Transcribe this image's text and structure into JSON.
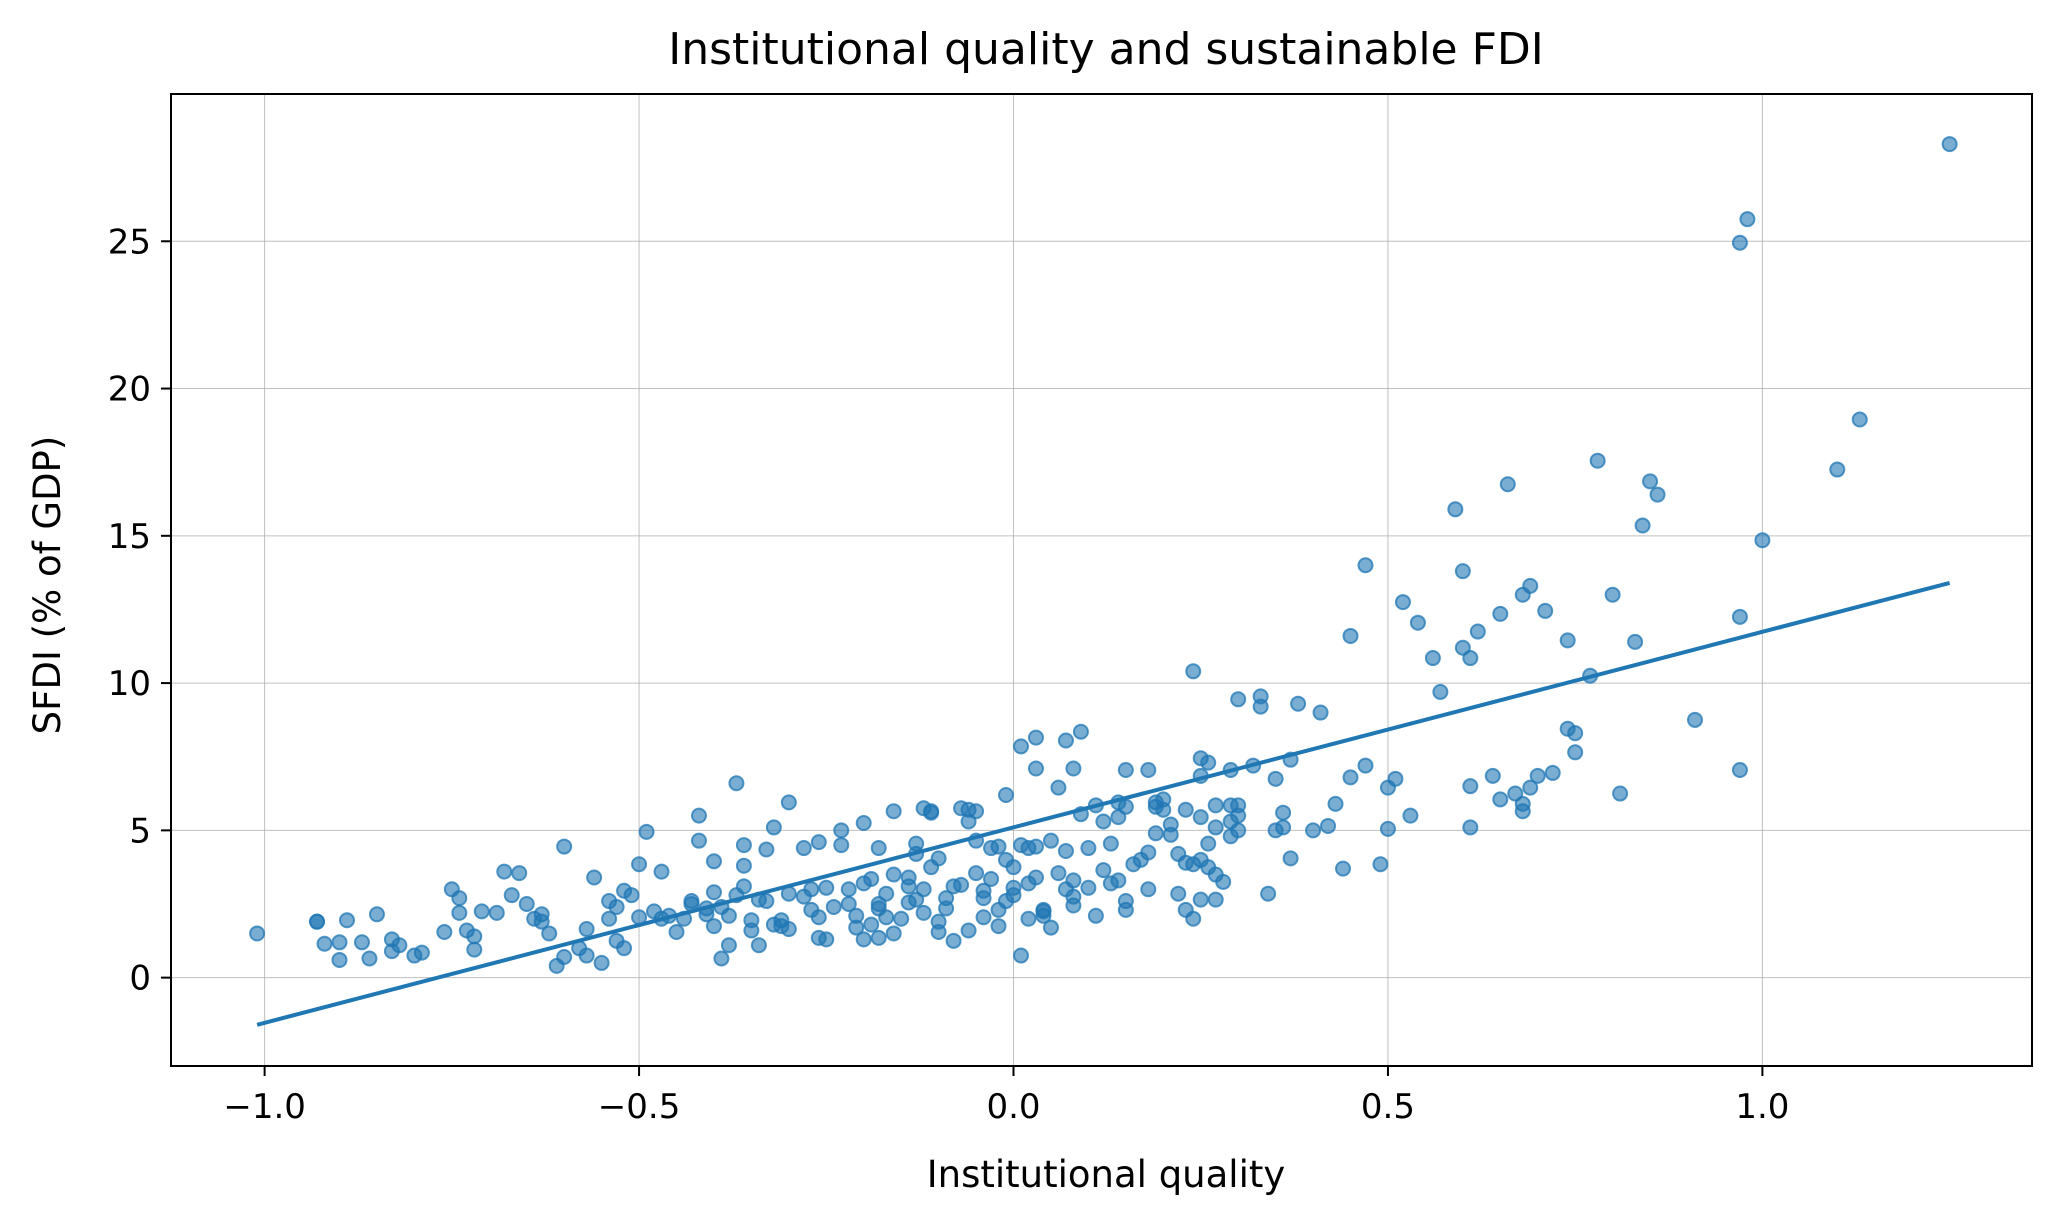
{
  "chart_data": {
    "type": "scatter",
    "title": "Institutional quality and sustainable FDI",
    "xlabel": "Institutional quality",
    "ylabel": "SFDI (% of GDP)",
    "xlim": [
      -1.125,
      1.36
    ],
    "ylim": [
      -3.0,
      30.0
    ],
    "xticks": [
      -1.0,
      -0.5,
      0.0,
      0.5,
      1.0
    ],
    "xtick_labels": [
      "−1.0",
      "−0.5",
      "0.0",
      "0.5",
      "1.0"
    ],
    "yticks": [
      0,
      5,
      10,
      15,
      20,
      25
    ],
    "ytick_labels": [
      "0",
      "5",
      "10",
      "15",
      "20",
      "25"
    ],
    "grid": true,
    "colors": {
      "points": "#1f77b4",
      "fit_line": "#1f77b4"
    },
    "fit_line": {
      "x": [
        -1.01,
        1.25
      ],
      "y": [
        -1.6,
        13.4
      ]
    },
    "points": [
      [
        -1.01,
        1.5
      ],
      [
        -0.93,
        1.9
      ],
      [
        -0.93,
        1.9
      ],
      [
        -0.92,
        1.15
      ],
      [
        -0.9,
        0.6
      ],
      [
        -0.9,
        1.2
      ],
      [
        -0.89,
        1.95
      ],
      [
        -0.87,
        1.2
      ],
      [
        -0.86,
        0.65
      ],
      [
        -0.85,
        2.15
      ],
      [
        -0.83,
        1.3
      ],
      [
        -0.83,
        0.9
      ],
      [
        -0.82,
        1.1
      ],
      [
        -0.8,
        0.75
      ],
      [
        -0.79,
        0.85
      ],
      [
        -0.76,
        1.55
      ],
      [
        -0.75,
        3.0
      ],
      [
        -0.74,
        2.7
      ],
      [
        -0.74,
        2.2
      ],
      [
        -0.73,
        1.6
      ],
      [
        -0.72,
        1.4
      ],
      [
        -0.72,
        0.95
      ],
      [
        -0.71,
        2.25
      ],
      [
        -0.69,
        2.2
      ],
      [
        -0.68,
        3.6
      ],
      [
        -0.67,
        2.8
      ],
      [
        -0.66,
        3.55
      ],
      [
        -0.65,
        2.5
      ],
      [
        -0.64,
        2.0
      ],
      [
        -0.63,
        1.9
      ],
      [
        -0.63,
        2.15
      ],
      [
        -0.62,
        1.5
      ],
      [
        -0.61,
        0.4
      ],
      [
        -0.6,
        0.7
      ],
      [
        -0.6,
        4.45
      ],
      [
        -0.58,
        1.0
      ],
      [
        -0.57,
        0.75
      ],
      [
        -0.57,
        1.65
      ],
      [
        -0.56,
        3.4
      ],
      [
        -0.55,
        0.5
      ],
      [
        -0.54,
        2.6
      ],
      [
        -0.54,
        2.0
      ],
      [
        -0.53,
        1.25
      ],
      [
        -0.53,
        2.4
      ],
      [
        -0.52,
        2.95
      ],
      [
        -0.52,
        1.0
      ],
      [
        -0.51,
        2.8
      ],
      [
        -0.5,
        2.05
      ],
      [
        -0.5,
        3.85
      ],
      [
        -0.49,
        4.95
      ],
      [
        -0.48,
        2.25
      ],
      [
        -0.47,
        2.0
      ],
      [
        -0.47,
        3.6
      ],
      [
        -0.46,
        2.1
      ],
      [
        -0.45,
        1.55
      ],
      [
        -0.44,
        2.0
      ],
      [
        -0.43,
        2.5
      ],
      [
        -0.43,
        2.6
      ],
      [
        -0.42,
        5.5
      ],
      [
        -0.42,
        4.65
      ],
      [
        -0.41,
        2.15
      ],
      [
        -0.41,
        2.35
      ],
      [
        -0.4,
        1.75
      ],
      [
        -0.4,
        3.95
      ],
      [
        -0.4,
        2.9
      ],
      [
        -0.39,
        0.65
      ],
      [
        -0.39,
        2.4
      ],
      [
        -0.38,
        2.1
      ],
      [
        -0.38,
        1.1
      ],
      [
        -0.37,
        2.8
      ],
      [
        -0.37,
        6.6
      ],
      [
        -0.36,
        3.8
      ],
      [
        -0.36,
        4.5
      ],
      [
        -0.36,
        3.1
      ],
      [
        -0.35,
        1.6
      ],
      [
        -0.35,
        1.95
      ],
      [
        -0.34,
        2.65
      ],
      [
        -0.34,
        1.1
      ],
      [
        -0.33,
        4.35
      ],
      [
        -0.33,
        2.6
      ],
      [
        -0.32,
        1.8
      ],
      [
        -0.32,
        5.1
      ],
      [
        -0.31,
        1.95
      ],
      [
        -0.31,
        1.75
      ],
      [
        -0.3,
        5.95
      ],
      [
        -0.3,
        1.65
      ],
      [
        -0.3,
        2.85
      ],
      [
        -0.28,
        4.4
      ],
      [
        -0.28,
        2.75
      ],
      [
        -0.27,
        3.0
      ],
      [
        -0.27,
        2.3
      ],
      [
        -0.26,
        1.35
      ],
      [
        -0.26,
        2.05
      ],
      [
        -0.26,
        4.6
      ],
      [
        -0.25,
        3.05
      ],
      [
        -0.25,
        1.3
      ],
      [
        -0.24,
        2.4
      ],
      [
        -0.23,
        4.5
      ],
      [
        -0.23,
        5.0
      ],
      [
        -0.22,
        3.0
      ],
      [
        -0.21,
        2.1
      ],
      [
        -0.2,
        5.25
      ],
      [
        -0.2,
        1.3
      ],
      [
        -0.2,
        3.2
      ],
      [
        -0.19,
        1.8
      ],
      [
        -0.18,
        2.5
      ],
      [
        -0.18,
        2.35
      ],
      [
        -0.18,
        1.35
      ],
      [
        -0.17,
        2.05
      ],
      [
        -0.17,
        2.85
      ],
      [
        -0.16,
        3.5
      ],
      [
        -0.15,
        2.0
      ],
      [
        -0.14,
        3.4
      ],
      [
        -0.14,
        2.55
      ],
      [
        -0.13,
        2.65
      ],
      [
        -0.13,
        4.55
      ],
      [
        -0.13,
        4.2
      ],
      [
        -0.12,
        3.0
      ],
      [
        -0.12,
        2.2
      ],
      [
        -0.11,
        3.75
      ],
      [
        -0.11,
        5.65
      ],
      [
        -0.1,
        1.9
      ],
      [
        -0.1,
        1.55
      ],
      [
        -0.1,
        4.05
      ],
      [
        -0.09,
        2.35
      ],
      [
        -0.08,
        3.1
      ],
      [
        -0.08,
        1.25
      ],
      [
        -0.07,
        3.15
      ],
      [
        -0.07,
        5.75
      ],
      [
        -0.06,
        5.7
      ],
      [
        -0.06,
        1.6
      ],
      [
        -0.06,
        5.3
      ],
      [
        -0.05,
        5.65
      ],
      [
        -0.05,
        3.55
      ],
      [
        -0.05,
        4.65
      ],
      [
        -0.04,
        2.7
      ],
      [
        -0.04,
        2.95
      ],
      [
        -0.04,
        2.05
      ],
      [
        -0.03,
        3.35
      ],
      [
        -0.02,
        2.3
      ],
      [
        -0.02,
        1.75
      ],
      [
        -0.01,
        2.6
      ],
      [
        -0.01,
        6.2
      ],
      [
        -0.01,
        4.0
      ],
      [
        0.0,
        3.75
      ],
      [
        0.0,
        2.8
      ],
      [
        0.0,
        3.05
      ],
      [
        0.01,
        4.5
      ],
      [
        0.01,
        7.85
      ],
      [
        0.01,
        0.75
      ],
      [
        0.02,
        4.4
      ],
      [
        0.02,
        3.2
      ],
      [
        0.03,
        3.4
      ],
      [
        0.03,
        8.15
      ],
      [
        0.03,
        4.45
      ],
      [
        0.04,
        2.3
      ],
      [
        0.04,
        2.25
      ],
      [
        0.04,
        2.1
      ],
      [
        0.05,
        1.7
      ],
      [
        0.05,
        4.65
      ],
      [
        0.06,
        6.45
      ],
      [
        0.07,
        3.0
      ],
      [
        0.07,
        8.05
      ],
      [
        0.07,
        4.3
      ],
      [
        0.08,
        2.75
      ],
      [
        0.08,
        7.1
      ],
      [
        0.09,
        5.55
      ],
      [
        0.09,
        8.35
      ],
      [
        0.1,
        4.4
      ],
      [
        0.11,
        2.1
      ],
      [
        0.12,
        3.65
      ],
      [
        0.13,
        3.2
      ],
      [
        0.13,
        4.55
      ],
      [
        0.14,
        3.3
      ],
      [
        0.15,
        5.8
      ],
      [
        0.15,
        7.05
      ],
      [
        0.15,
        2.6
      ],
      [
        0.15,
        2.3
      ],
      [
        0.16,
        3.85
      ],
      [
        0.17,
        4.0
      ],
      [
        0.18,
        4.25
      ],
      [
        0.18,
        3.0
      ],
      [
        0.19,
        5.8
      ],
      [
        0.19,
        5.95
      ],
      [
        0.2,
        5.7
      ],
      [
        0.2,
        6.05
      ],
      [
        0.21,
        4.85
      ],
      [
        0.21,
        5.2
      ],
      [
        0.22,
        4.2
      ],
      [
        0.22,
        2.85
      ],
      [
        0.23,
        5.7
      ],
      [
        0.23,
        2.3
      ],
      [
        0.24,
        3.85
      ],
      [
        0.25,
        4.0
      ],
      [
        0.25,
        6.85
      ],
      [
        0.25,
        5.45
      ],
      [
        0.26,
        7.3
      ],
      [
        0.26,
        3.75
      ],
      [
        0.27,
        3.5
      ],
      [
        0.27,
        5.85
      ],
      [
        0.28,
        3.25
      ],
      [
        0.29,
        7.05
      ],
      [
        0.29,
        4.8
      ],
      [
        0.3,
        5.85
      ],
      [
        0.3,
        5.0
      ],
      [
        0.23,
        3.9
      ],
      [
        0.24,
        10.4
      ],
      [
        0.24,
        2.0
      ],
      [
        0.25,
        7.45
      ],
      [
        0.25,
        2.65
      ],
      [
        0.26,
        4.55
      ],
      [
        0.27,
        5.1
      ],
      [
        0.27,
        2.65
      ],
      [
        0.29,
        5.3
      ],
      [
        0.29,
        5.85
      ],
      [
        0.3,
        5.5
      ],
      [
        0.3,
        9.45
      ],
      [
        0.32,
        7.2
      ],
      [
        0.33,
        9.55
      ],
      [
        0.33,
        9.2
      ],
      [
        0.34,
        2.85
      ],
      [
        0.35,
        5.0
      ],
      [
        0.35,
        6.75
      ],
      [
        0.36,
        5.6
      ],
      [
        0.36,
        5.1
      ],
      [
        0.37,
        4.05
      ],
      [
        0.37,
        7.4
      ],
      [
        0.38,
        9.3
      ],
      [
        0.4,
        5.0
      ],
      [
        0.41,
        9.0
      ],
      [
        0.42,
        5.15
      ],
      [
        0.43,
        5.9
      ],
      [
        0.44,
        3.7
      ],
      [
        0.45,
        6.8
      ],
      [
        0.45,
        11.6
      ],
      [
        0.47,
        7.2
      ],
      [
        0.47,
        14.0
      ],
      [
        0.49,
        3.85
      ],
      [
        0.5,
        6.45
      ],
      [
        0.5,
        5.05
      ],
      [
        0.51,
        6.75
      ],
      [
        0.52,
        12.75
      ],
      [
        0.53,
        5.5
      ],
      [
        0.54,
        12.05
      ],
      [
        0.56,
        10.85
      ],
      [
        0.57,
        9.7
      ],
      [
        0.59,
        15.9
      ],
      [
        0.6,
        11.2
      ],
      [
        0.6,
        13.8
      ],
      [
        0.61,
        10.85
      ],
      [
        0.61,
        6.5
      ],
      [
        0.61,
        5.1
      ],
      [
        0.62,
        11.75
      ],
      [
        0.64,
        6.85
      ],
      [
        0.65,
        12.35
      ],
      [
        0.65,
        6.05
      ],
      [
        0.66,
        16.75
      ],
      [
        0.67,
        6.25
      ],
      [
        0.68,
        5.9
      ],
      [
        0.68,
        13.0
      ],
      [
        0.68,
        5.65
      ],
      [
        0.69,
        13.3
      ],
      [
        0.69,
        6.45
      ],
      [
        0.7,
        6.85
      ],
      [
        0.71,
        12.45
      ],
      [
        0.72,
        6.95
      ],
      [
        0.74,
        11.45
      ],
      [
        0.74,
        8.45
      ],
      [
        0.75,
        8.3
      ],
      [
        0.75,
        7.65
      ],
      [
        0.77,
        10.25
      ],
      [
        0.78,
        17.55
      ],
      [
        0.8,
        13.0
      ],
      [
        0.81,
        6.25
      ],
      [
        0.83,
        11.4
      ],
      [
        0.84,
        15.35
      ],
      [
        0.85,
        16.85
      ],
      [
        0.86,
        16.4
      ],
      [
        0.91,
        8.75
      ],
      [
        0.97,
        12.25
      ],
      [
        0.97,
        7.05
      ],
      [
        0.97,
        24.95
      ],
      [
        0.98,
        25.75
      ],
      [
        1.0,
        14.85
      ],
      [
        1.1,
        17.25
      ],
      [
        1.13,
        18.95
      ],
      [
        1.25,
        28.3
      ],
      [
        -0.22,
        2.5
      ],
      [
        -0.21,
        1.7
      ],
      [
        -0.19,
        3.35
      ],
      [
        -0.18,
        4.4
      ],
      [
        -0.16,
        5.65
      ],
      [
        -0.16,
        1.5
      ],
      [
        -0.14,
        3.1
      ],
      [
        -0.12,
        5.75
      ],
      [
        -0.11,
        5.6
      ],
      [
        -0.09,
        2.7
      ],
      [
        -0.03,
        4.4
      ],
      [
        -0.02,
        4.45
      ],
      [
        0.02,
        2.0
      ],
      [
        0.03,
        7.1
      ],
      [
        0.06,
        3.55
      ],
      [
        0.08,
        2.45
      ],
      [
        0.11,
        5.85
      ],
      [
        0.12,
        5.3
      ],
      [
        0.14,
        5.95
      ],
      [
        0.18,
        7.05
      ],
      [
        0.19,
        4.9
      ],
      [
        0.14,
        5.45
      ],
      [
        0.08,
        3.3
      ],
      [
        0.1,
        3.05
      ]
    ]
  }
}
